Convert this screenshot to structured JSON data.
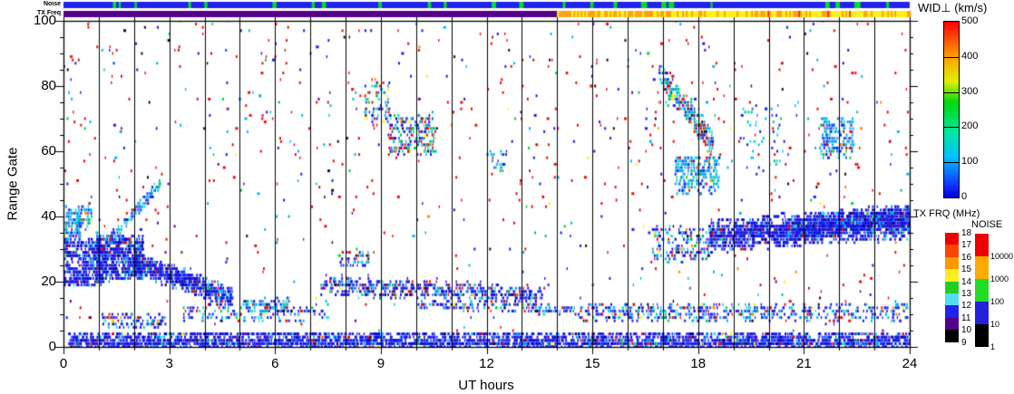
{
  "strips": {
    "noise_label": "Noise",
    "txfreq_label": "TX Freq",
    "noise_strip": {
      "base_color": "#2222ee",
      "mark_color": "#00dd22",
      "mark_prob": 0.05
    },
    "txfreq_strip": {
      "split_hour": 14,
      "before_color": "#550088",
      "yellow": "#ffee00",
      "orange": "#ff9900",
      "red": "#ee2200"
    }
  },
  "axes": {
    "xlabel": "UT hours",
    "ylabel": "Range Gate",
    "x_ticks": [
      "0",
      "3",
      "6",
      "9",
      "12",
      "15",
      "18",
      "21",
      "24"
    ],
    "y_ticks": [
      "100",
      "80",
      "60",
      "40",
      "20",
      "0"
    ]
  },
  "colorbar": {
    "title": "WID⊥ (km/s)",
    "ticks": [
      "500",
      "400",
      "300",
      "200",
      "100",
      "0"
    ],
    "stops": [
      {
        "c": "#ff0000",
        "p": 0.0
      },
      {
        "c": "#ff9900",
        "p": 0.19
      },
      {
        "c": "#e0f000",
        "p": 0.34
      },
      {
        "c": "#00d80f",
        "p": 0.46
      },
      {
        "c": "#00e6a0",
        "p": 0.63
      },
      {
        "c": "#00c2ff",
        "p": 0.77
      },
      {
        "c": "#1133ff",
        "p": 0.93
      },
      {
        "c": "#0000dd",
        "p": 1.0
      }
    ],
    "dividers": [
      0.2,
      0.4,
      0.6,
      0.8
    ]
  },
  "txfrq_legend": {
    "title": "TX FRQ (MHz)",
    "labels": [
      "18",
      "17",
      "16",
      "15",
      "14",
      "13",
      "12",
      "11",
      "10",
      "9"
    ],
    "colors": [
      "#ee0000",
      "#ff4400",
      "#ff9900",
      "#ffee22",
      "#22cc22",
      "#55ddee",
      "#2222ee",
      "#550088",
      "#000000"
    ]
  },
  "noise_legend": {
    "title": "NOISE",
    "labels": [
      "10000",
      "1000",
      "100",
      "10",
      "1"
    ],
    "colors": [
      "#ee0000",
      "#ffaa00",
      "#22dd22",
      "#2222dd",
      "#000000"
    ]
  },
  "chart_data": {
    "type": "scatter",
    "subtype": "radar-range-time-parameter-plot",
    "xlabel": "UT hours",
    "ylabel": "Range Gate",
    "x_range": [
      0,
      24
    ],
    "y_range": [
      0,
      100
    ],
    "color_variable": "WID_perp (km/s)",
    "color_range": [
      0,
      500
    ],
    "gridlines": {
      "vertical_every_hours": 1,
      "color": "#000000"
    },
    "seed": 1337,
    "palettes": {
      "dense": [
        [
          "#1616e0",
          55
        ],
        [
          "#2b2bff",
          20
        ],
        [
          "#0000b8",
          9
        ],
        [
          "#00bbff",
          6
        ],
        [
          "#33ddcc",
          3
        ],
        [
          "#e81010",
          2.5
        ],
        [
          "#101010",
          1.5
        ],
        [
          "#00cc44",
          1.5
        ],
        [
          "#6600aa",
          1
        ],
        [
          "#ffee00",
          0.5
        ]
      ],
      "dense_mix": [
        [
          "#1616e0",
          44
        ],
        [
          "#2b2bff",
          14
        ],
        [
          "#00bbff",
          14
        ],
        [
          "#33ddcc",
          7
        ],
        [
          "#e81010",
          9
        ],
        [
          "#101010",
          4
        ],
        [
          "#00cc44",
          3
        ],
        [
          "#0000b8",
          3
        ],
        [
          "#ffee00",
          1
        ],
        [
          "#6600aa",
          1
        ]
      ],
      "mixed_blue": [
        [
          "#1d1de8",
          40
        ],
        [
          "#3344ff",
          12
        ],
        [
          "#00bbee",
          20
        ],
        [
          "#33ddcc",
          8
        ],
        [
          "#e81010",
          10
        ],
        [
          "#00cc44",
          4
        ],
        [
          "#101010",
          3
        ],
        [
          "#ffee00",
          1.5
        ],
        [
          "#ff8800",
          1.5
        ]
      ],
      "cyan_blue": [
        [
          "#00bbee",
          38
        ],
        [
          "#33ddcc",
          14
        ],
        [
          "#2222ee",
          28
        ],
        [
          "#4466ff",
          12
        ],
        [
          "#e81010",
          4
        ],
        [
          "#00cc44",
          4
        ]
      ],
      "cyan_blue_dense": [
        [
          "#2299ff",
          28
        ],
        [
          "#00bbee",
          28
        ],
        [
          "#1d1de8",
          24
        ],
        [
          "#33ddcc",
          10
        ],
        [
          "#e81010",
          4
        ],
        [
          "#ffaa00",
          2
        ],
        [
          "#00cc44",
          4
        ]
      ],
      "mixed_all": [
        [
          "#1d1de8",
          24
        ],
        [
          "#00bbee",
          18
        ],
        [
          "#00cc44",
          14
        ],
        [
          "#e81010",
          16
        ],
        [
          "#33ddcc",
          8
        ],
        [
          "#ffee00",
          5
        ],
        [
          "#ff8800",
          3
        ],
        [
          "#4466ff",
          7
        ],
        [
          "#101010",
          3
        ],
        [
          "#6600aa",
          2
        ]
      ],
      "scatter": [
        [
          "#e81010",
          44
        ],
        [
          "#1d1de8",
          25
        ],
        [
          "#00bbee",
          12
        ],
        [
          "#00cc44",
          6
        ],
        [
          "#101010",
          5
        ],
        [
          "#6600aa",
          3
        ],
        [
          "#ff8800",
          2
        ],
        [
          "#ffee00",
          3
        ]
      ],
      "scatter_red": [
        [
          "#e81010",
          68
        ],
        [
          "#1d1de8",
          15
        ],
        [
          "#00bbee",
          9
        ],
        [
          "#00cc44",
          4
        ],
        [
          "#101010",
          4
        ]
      ]
    },
    "regions": [
      {
        "name": "bottom-band",
        "type": "rect",
        "t": [
          0.15,
          24
        ],
        "g": [
          0,
          4.5
        ],
        "n": 2300,
        "pal": "dense"
      },
      {
        "name": "bottom-band-core",
        "type": "rect",
        "t": [
          0.15,
          24
        ],
        "g": [
          0,
          2.2
        ],
        "n": 900,
        "pal": "dense"
      },
      {
        "name": "low-band-left",
        "type": "rect",
        "t": [
          1.1,
          2.9
        ],
        "g": [
          6,
          10
        ],
        "n": 90,
        "pal": "mixed_blue"
      },
      {
        "name": "low-band-mid",
        "type": "rect",
        "t": [
          3.4,
          7.6
        ],
        "g": [
          8,
          13
        ],
        "n": 150,
        "pal": "mixed_blue"
      },
      {
        "name": "low-patch-5",
        "type": "rect",
        "t": [
          5.1,
          6.4
        ],
        "g": [
          11,
          15
        ],
        "n": 70,
        "pal": "mixed_blue"
      },
      {
        "name": "mid-band",
        "type": "band",
        "t": [
          7.3,
          13.6
        ],
        "gc": [
          19,
          15.5
        ],
        "th": 3.4,
        "n": 560,
        "pal": "dense_mix"
      },
      {
        "name": "mid-band-tail",
        "type": "band",
        "t": [
          10,
          14.6
        ],
        "gc": [
          13,
          11
        ],
        "th": 1.8,
        "n": 130,
        "pal": "mixed_blue"
      },
      {
        "name": "low-band-right",
        "type": "rect",
        "t": [
          14.6,
          24
        ],
        "g": [
          8,
          13
        ],
        "n": 480,
        "pal": "mixed_blue"
      },
      {
        "name": "left-blob-core",
        "type": "rect",
        "t": [
          0,
          1.15
        ],
        "g": [
          19,
          33
        ],
        "n": 430,
        "pal": "dense"
      },
      {
        "name": "left-upper-patch",
        "type": "rect",
        "t": [
          0.05,
          0.5
        ],
        "g": [
          33,
          43
        ],
        "n": 80,
        "pal": "cyan_blue_dense"
      },
      {
        "name": "left-spike",
        "type": "band",
        "t": [
          0.35,
          0.8
        ],
        "gc": [
          38,
          42
        ],
        "th": 5,
        "n": 60,
        "pal": "cyan_blue"
      },
      {
        "name": "left-blob2",
        "type": "rect",
        "t": [
          0.95,
          2.25
        ],
        "g": [
          21,
          34
        ],
        "n": 560,
        "pal": "dense"
      },
      {
        "name": "left-tail",
        "type": "band",
        "t": [
          2.0,
          4.8
        ],
        "gc": [
          26,
          15
        ],
        "th": 3.6,
        "n": 600,
        "pal": "dense"
      },
      {
        "name": "left-arm",
        "type": "band",
        "t": [
          1.15,
          2.75
        ],
        "gc": [
          31,
          50
        ],
        "th": 2.2,
        "n": 110,
        "pal": "cyan_blue"
      },
      {
        "name": "cluster-9-high",
        "type": "rect",
        "t": [
          8.55,
          9.3
        ],
        "g": [
          68,
          82
        ],
        "n": 70,
        "pal": "mixed_all"
      },
      {
        "name": "mid-cluster",
        "type": "rect",
        "t": [
          9.2,
          10.55
        ],
        "g": [
          59,
          71
        ],
        "n": 210,
        "pal": "mixed_all"
      },
      {
        "name": "right-band",
        "type": "band",
        "t": [
          18.3,
          24
        ],
        "gc": [
          34,
          38
        ],
        "th": 5.5,
        "n": 1500,
        "pal": "dense"
      },
      {
        "name": "right-band-thick",
        "type": "band",
        "t": [
          20.5,
          24
        ],
        "gc": [
          36,
          41
        ],
        "th": 4,
        "n": 500,
        "pal": "dense"
      },
      {
        "name": "right-band-lead",
        "type": "rect",
        "t": [
          16.6,
          18.3
        ],
        "g": [
          26,
          37
        ],
        "n": 150,
        "pal": "mixed_blue"
      },
      {
        "name": "cluster-17-high",
        "type": "band",
        "t": [
          16.9,
          18.45
        ],
        "gc": [
          84,
          62
        ],
        "th": 5,
        "n": 240,
        "pal": "mixed_all"
      },
      {
        "name": "cluster-17-mid",
        "type": "rect",
        "t": [
          17.35,
          18.6
        ],
        "g": [
          47,
          58
        ],
        "n": 220,
        "pal": "cyan_blue_dense"
      },
      {
        "name": "cluster-19",
        "type": "rect",
        "t": [
          19.2,
          20.4
        ],
        "g": [
          55,
          75
        ],
        "n": 45,
        "pal": "cyan_blue"
      },
      {
        "name": "cluster-22",
        "type": "rect",
        "t": [
          21.45,
          22.4
        ],
        "g": [
          58,
          70
        ],
        "n": 160,
        "pal": "cyan_blue_dense"
      },
      {
        "name": "cluster-12",
        "type": "rect",
        "t": [
          12.1,
          12.6
        ],
        "g": [
          54,
          60
        ],
        "n": 25,
        "pal": "cyan_blue"
      },
      {
        "name": "patch-8",
        "type": "rect",
        "t": [
          7.8,
          8.7
        ],
        "g": [
          25,
          29
        ],
        "n": 45,
        "pal": "mixed_blue"
      },
      {
        "name": "scatter",
        "type": "rect",
        "t": [
          0,
          24
        ],
        "g": [
          3,
          100
        ],
        "n": 650,
        "pal": "scatter"
      },
      {
        "name": "scatter-high",
        "type": "rect",
        "t": [
          0,
          24
        ],
        "g": [
          45,
          100
        ],
        "n": 170,
        "pal": "scatter_red"
      }
    ]
  }
}
